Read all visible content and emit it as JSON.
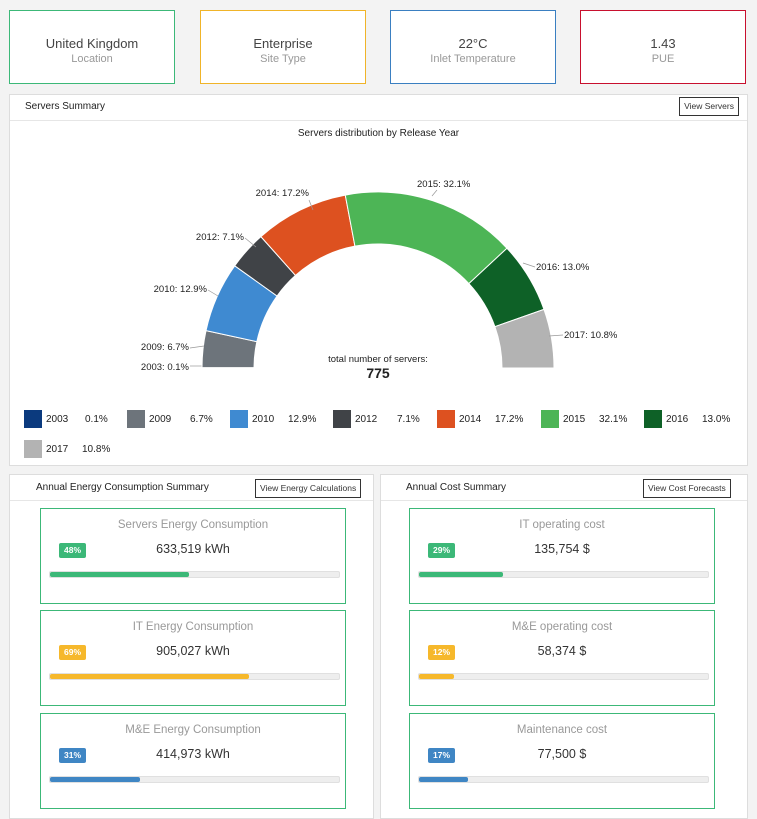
{
  "kpis": [
    {
      "value": "United Kingdom",
      "label": "Location",
      "color": "#3cb878"
    },
    {
      "value": "Enterprise",
      "label": "Site Type",
      "color": "#f0b429"
    },
    {
      "value": "22°C",
      "label": "Inlet Temperature",
      "color": "#3a7fc1"
    },
    {
      "value": "1.43",
      "label": "PUE",
      "color": "#c8102e"
    }
  ],
  "servers": {
    "title": "Servers Summary",
    "button": "View Servers",
    "chart_data": {
      "type": "pie",
      "title": "Servers distribution by Release Year",
      "shape": "half-donut",
      "center_label": "total number of servers:",
      "total": "775",
      "series": [
        {
          "name": "2003",
          "value": 0.1,
          "label": "2003: 0.1%",
          "legend_pct": "0.1%",
          "color": "#0b3a7e"
        },
        {
          "name": "2009",
          "value": 6.7,
          "label": "2009: 6.7%",
          "legend_pct": "6.7%",
          "color": "#6d747b"
        },
        {
          "name": "2010",
          "value": 12.9,
          "label": "2010: 12.9%",
          "legend_pct": "12.9%",
          "color": "#3f8ad1"
        },
        {
          "name": "2012",
          "value": 7.1,
          "label": "2012: 7.1%",
          "legend_pct": "7.1%",
          "color": "#404347"
        },
        {
          "name": "2014",
          "value": 17.2,
          "label": "2014: 17.2%",
          "legend_pct": "17.2%",
          "color": "#dd5120"
        },
        {
          "name": "2015",
          "value": 32.1,
          "label": "2015: 32.1%",
          "legend_pct": "32.1%",
          "color": "#4db556"
        },
        {
          "name": "2016",
          "value": 13.0,
          "label": "2016: 13.0%",
          "legend_pct": "13.0%",
          "color": "#0e6127"
        },
        {
          "name": "2017",
          "value": 10.8,
          "label": "2017: 10.8%",
          "legend_pct": "10.8%",
          "color": "#b3b3b3"
        }
      ]
    }
  },
  "energy": {
    "title": "Annual Energy Consumption Summary",
    "button": "View Energy Calculations",
    "cards": [
      {
        "title": "Servers Energy Consumption",
        "badge": "48%",
        "value": "633,519 kWh",
        "progress": 48,
        "color": "#3cb878"
      },
      {
        "title": "IT Energy Consumption",
        "badge": "69%",
        "value": "905,027 kWh",
        "progress": 69,
        "color": "#f6b82b"
      },
      {
        "title": "M&E Energy Consumption",
        "badge": "31%",
        "value": "414,973 kWh",
        "progress": 31,
        "color": "#3f86c4"
      }
    ]
  },
  "cost": {
    "title": "Annual Cost Summary",
    "button": "View Cost Forecasts",
    "cards": [
      {
        "title": "IT operating cost",
        "badge": "29%",
        "value": "135,754 $",
        "progress": 29,
        "color": "#3cb878"
      },
      {
        "title": "M&E operating cost",
        "badge": "12%",
        "value": "58,374 $",
        "progress": 12,
        "color": "#f6b82b"
      },
      {
        "title": "Maintenance cost",
        "badge": "17%",
        "value": "77,500 $",
        "progress": 17,
        "color": "#3f86c4"
      }
    ]
  }
}
